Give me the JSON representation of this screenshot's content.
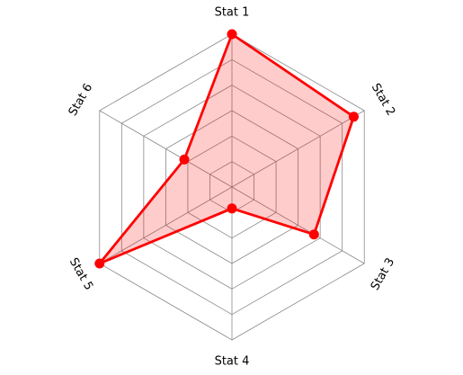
{
  "chart_data": {
    "type": "radar",
    "categories": [
      "Stat 1",
      "Stat 2",
      "Stat 3",
      "Stat 4",
      "Stat 5",
      "Stat 6"
    ],
    "series": [
      {
        "values": [
          10,
          9.2,
          6.2,
          1.4,
          10.0,
          3.6
        ]
      }
    ],
    "rlim": [
      0,
      10
    ],
    "rings": 6,
    "grid": true,
    "colors": {
      "line": "#ff0000",
      "fill": "rgba(255,0,0,0.2)",
      "grid": "#8a8a8a"
    }
  }
}
